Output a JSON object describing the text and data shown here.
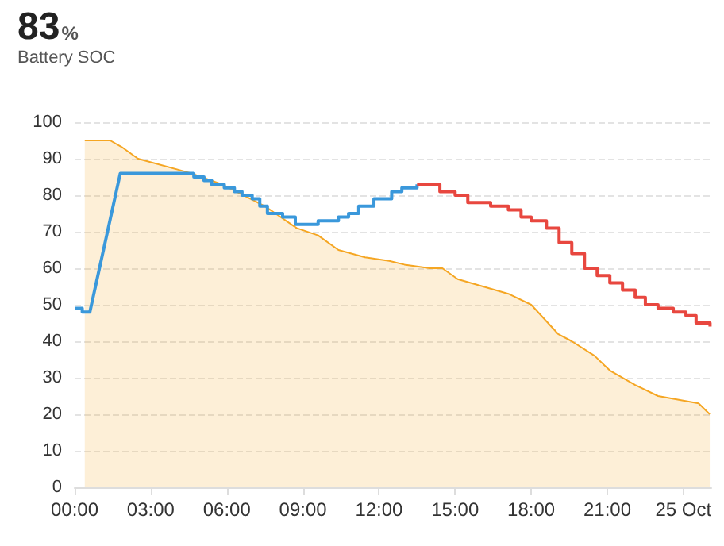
{
  "chart_data": {
    "type": "line",
    "title": "83%",
    "subtitle": "Battery SOC",
    "xlim": [
      0,
      25.1
    ],
    "xticks": [
      {
        "value": 0,
        "label": "00:00"
      },
      {
        "value": 3,
        "label": "03:00"
      },
      {
        "value": 6,
        "label": "06:00"
      },
      {
        "value": 9,
        "label": "09:00"
      },
      {
        "value": 12,
        "label": "12:00"
      },
      {
        "value": 15,
        "label": "15:00"
      },
      {
        "value": 18,
        "label": "18:00"
      },
      {
        "value": 21,
        "label": "21:00"
      },
      {
        "value": 24,
        "label": "25 Oct"
      }
    ],
    "ylim": [
      0,
      100
    ],
    "yticks": [
      0,
      10,
      20,
      30,
      40,
      50,
      60,
      70,
      80,
      90,
      100
    ],
    "grid": "y",
    "marker": "none",
    "line_style": "solid",
    "series": [
      {
        "type": "area",
        "color": "#f5a623",
        "x": [
          0.4,
          1.4,
          1.9,
          2.5,
          4.6,
          5.8,
          7.5,
          8.75,
          9.6,
          10.4,
          11.45,
          12.4,
          13.0,
          14.0,
          14.5,
          15.1,
          17.1,
          18.0,
          19.06,
          19.6,
          20.5,
          21.1,
          22.1,
          23.0,
          24.6,
          25.04
        ],
        "values": [
          95,
          95,
          93,
          90,
          86,
          83,
          77,
          71,
          69,
          65,
          63,
          62,
          61,
          60,
          60,
          57,
          53,
          50,
          42,
          40,
          36,
          32,
          28,
          25,
          23,
          20
        ]
      },
      {
        "color": "#3a98db",
        "x": [
          0,
          0.3,
          0.3,
          0.6,
          1.8,
          4.7,
          4.7,
          5.1,
          5.1,
          5.4,
          5.4,
          5.9,
          5.9,
          6.3,
          6.3,
          6.6,
          6.6,
          7.0,
          7.0,
          7.3,
          7.3,
          7.6,
          7.6,
          8.2,
          8.2,
          8.7,
          8.7,
          9.6,
          9.6,
          10.4,
          10.4,
          10.8,
          10.8,
          11.2,
          11.2,
          11.8,
          11.8,
          12.5,
          12.5,
          12.9,
          12.9,
          13.5,
          13.5
        ],
        "values": [
          49,
          49,
          48,
          48,
          86,
          86,
          85,
          85,
          84,
          84,
          83,
          83,
          82,
          82,
          81,
          81,
          80,
          80,
          79,
          79,
          77,
          77,
          75,
          75,
          74,
          74,
          72,
          72,
          73,
          73,
          74,
          74,
          75,
          75,
          77,
          77,
          79,
          79,
          81,
          81,
          82,
          82,
          83
        ]
      },
      {
        "type": "step",
        "color": "#e8473f",
        "x": [
          13.5,
          14.4,
          15.0,
          15.5,
          16.4,
          17.1,
          17.6,
          18.0,
          18.6,
          19.1,
          19.6,
          20.1,
          20.6,
          21.1,
          21.6,
          22.1,
          22.5,
          23.0,
          23.6,
          24.1,
          24.5,
          25.05
        ],
        "values": [
          83,
          81,
          80,
          78,
          77,
          76,
          74,
          73,
          71,
          67,
          64,
          60,
          58,
          56,
          54,
          52,
          50,
          49,
          48,
          47,
          45,
          44
        ]
      }
    ]
  }
}
